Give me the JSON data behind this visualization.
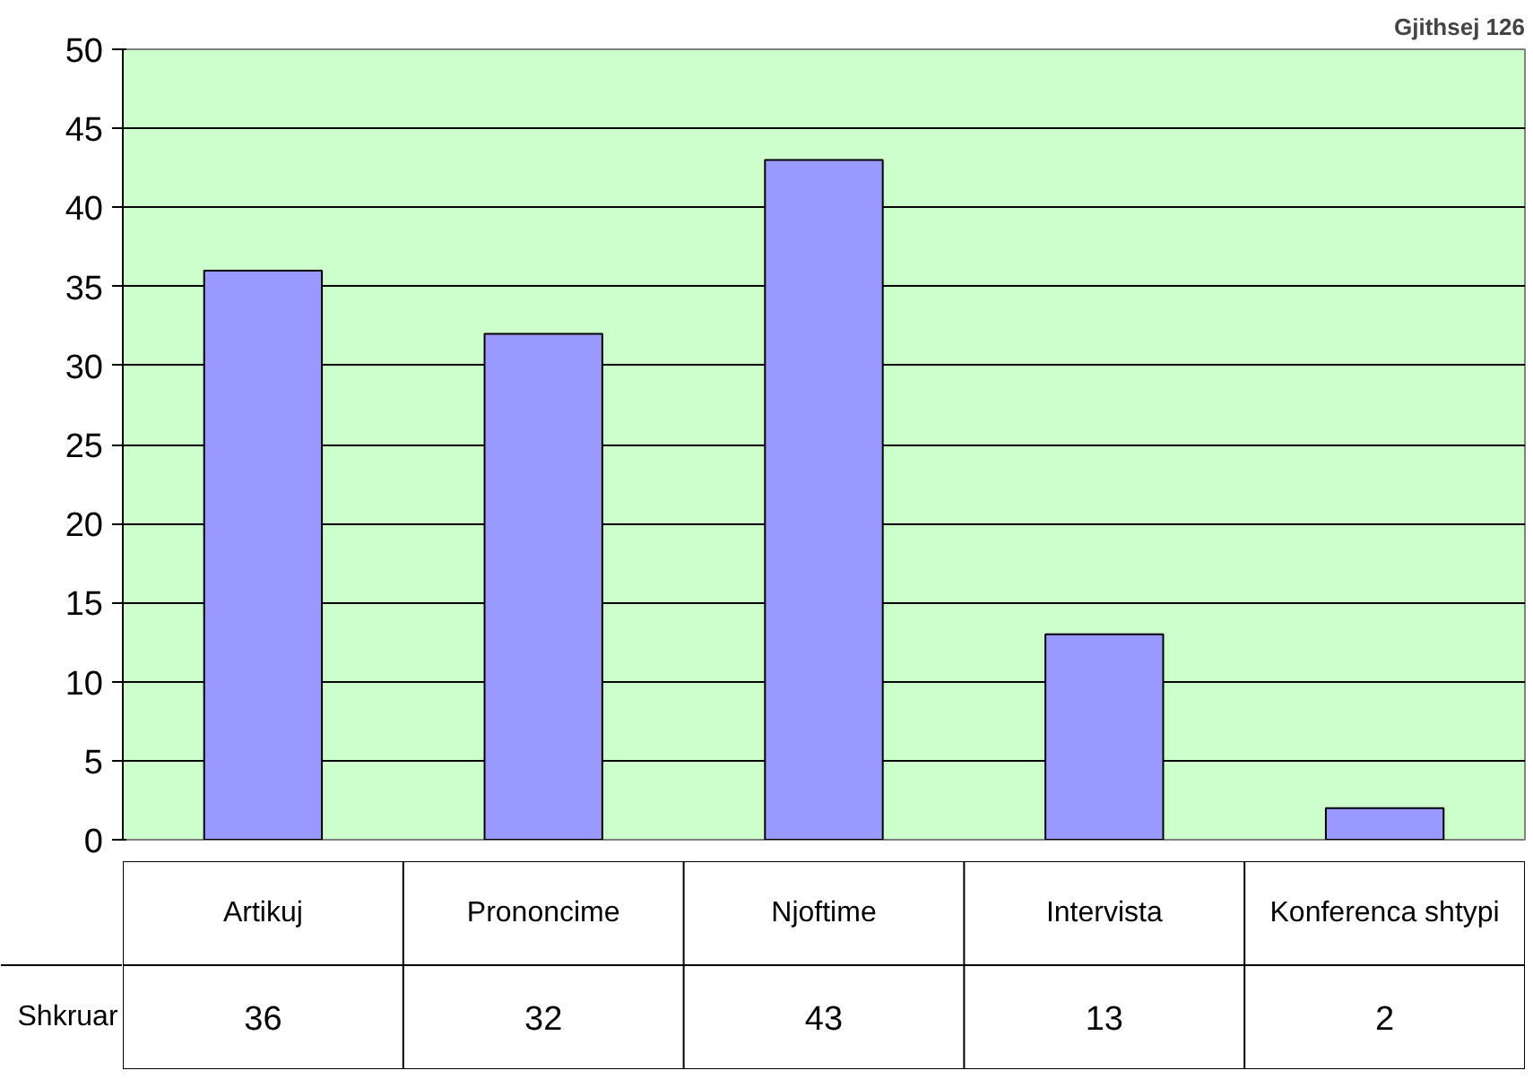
{
  "chart_data": {
    "type": "bar",
    "title": "Gjithsej 126",
    "categories": [
      "Artikuj",
      "Prononcime",
      "Njoftime",
      "Intervista",
      "Konferenca shtypi"
    ],
    "series": [
      {
        "name": "Shkruar",
        "color": "#9999ff",
        "values": [
          36,
          32,
          43,
          13,
          2
        ]
      }
    ],
    "ylim": [
      0,
      50
    ],
    "yticks": [
      0,
      5,
      10,
      15,
      20,
      25,
      30,
      35,
      40,
      45,
      50
    ],
    "grid": "y",
    "legend": false,
    "data_labels": true
  }
}
